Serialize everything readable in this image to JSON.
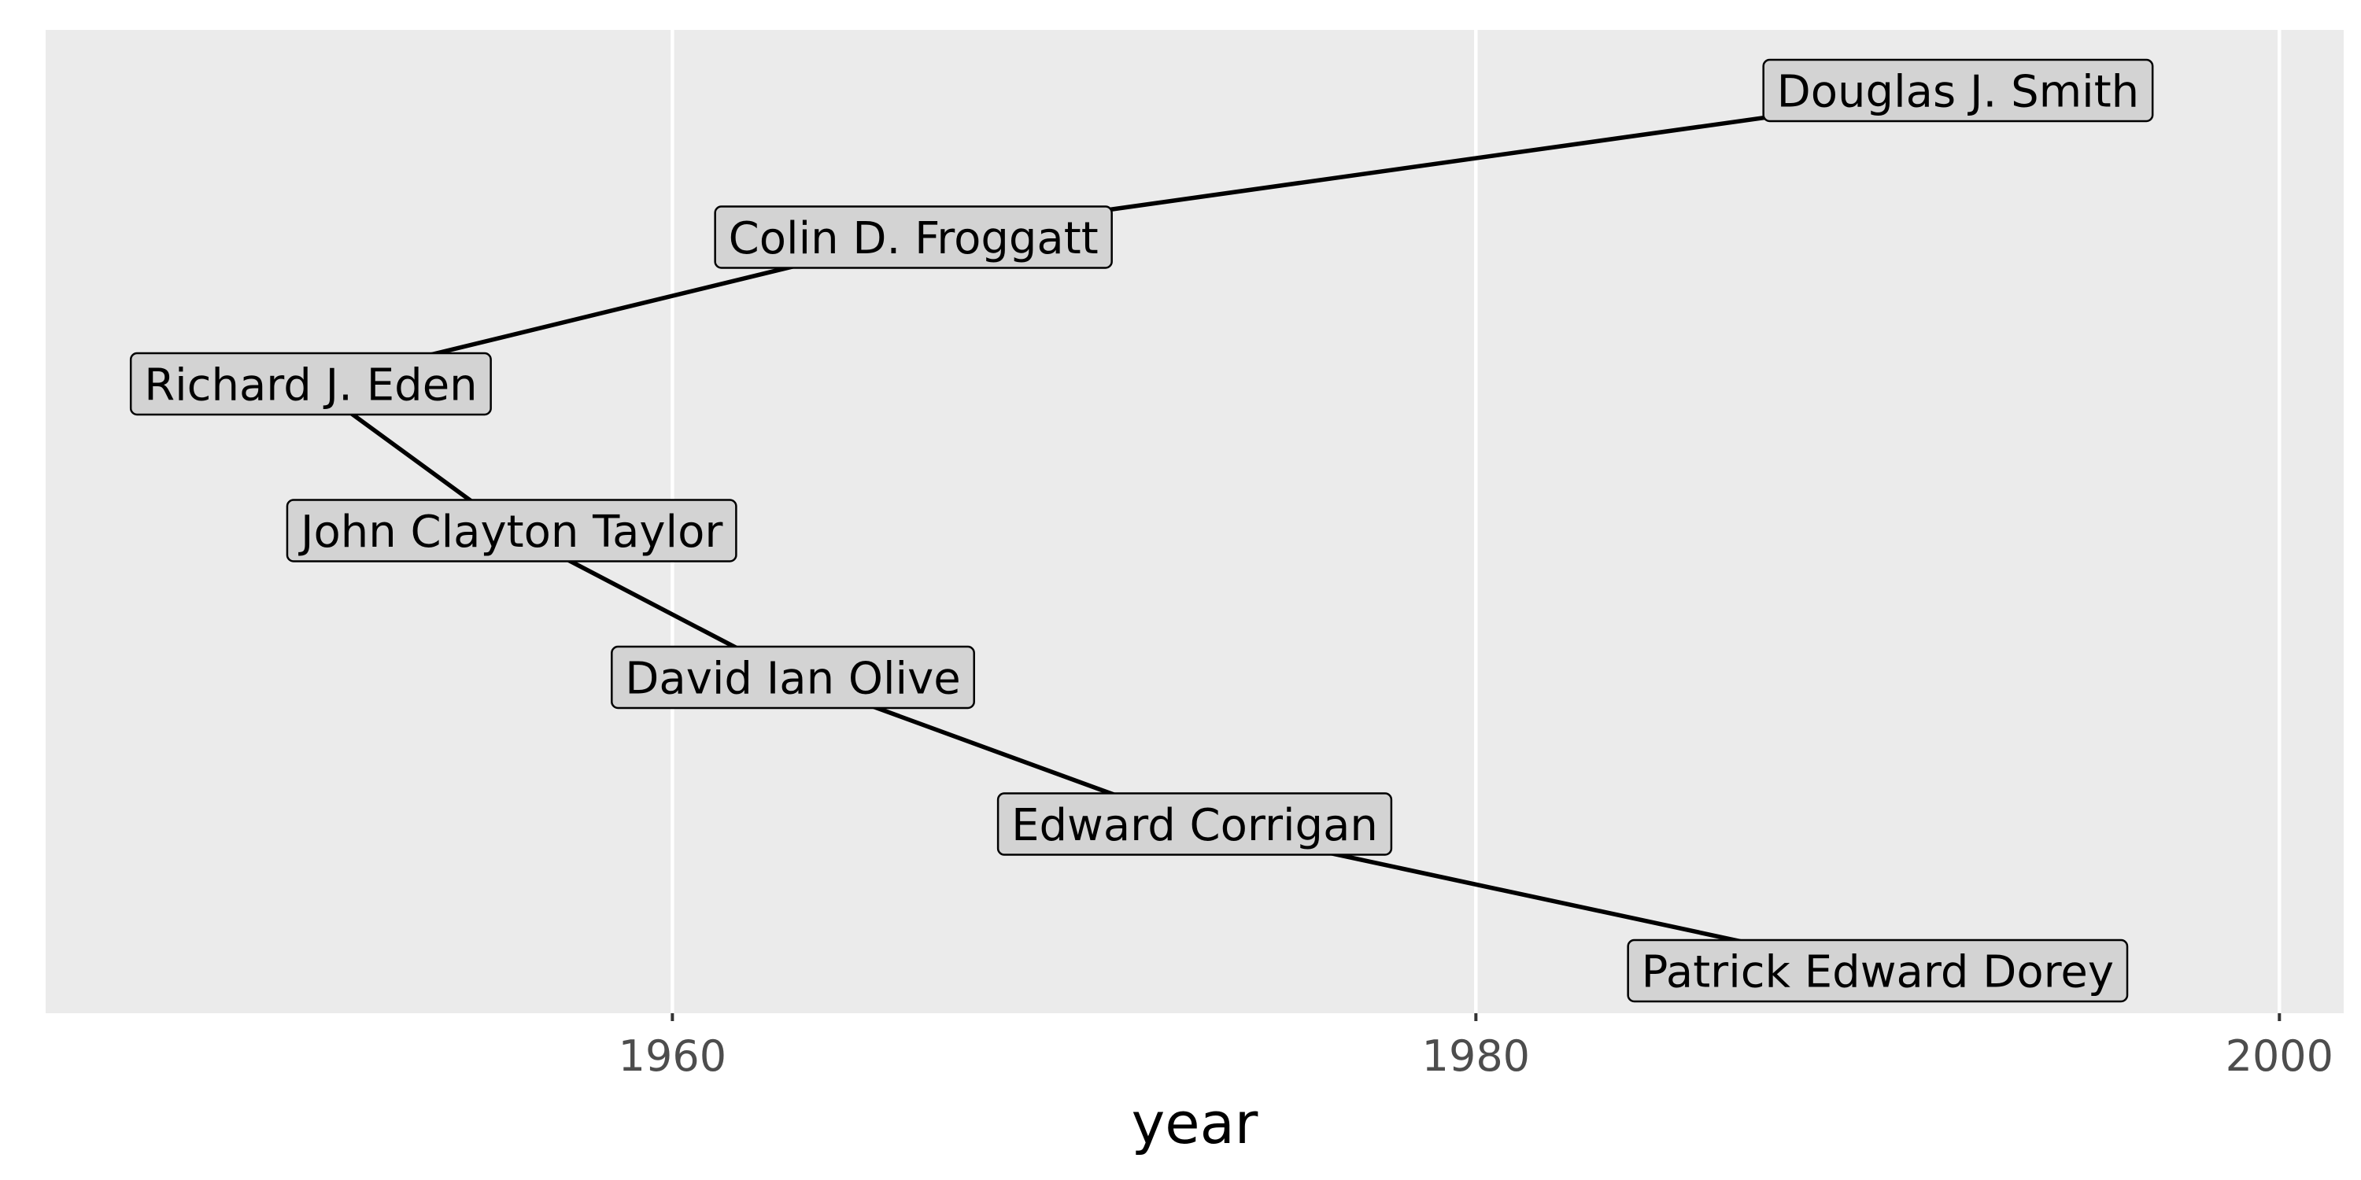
{
  "chart_data": {
    "type": "line",
    "title": "",
    "xlabel": "year",
    "ylabel": "",
    "xlim": [
      1944.4,
      2001.6
    ],
    "x_ticks": [
      1960,
      1980,
      2000
    ],
    "x_tick_labels": [
      "1960",
      "1980",
      "2000"
    ],
    "grid": true,
    "legend": "none",
    "colors": {
      "panel": "#ebebeb",
      "grid": "#ffffff",
      "line": "#000000",
      "label_fill": "#d3d3d3",
      "tick_text": "#4d4d4d"
    },
    "points": [
      {
        "label": "Douglas J. Smith",
        "year": 1992
      },
      {
        "label": "Colin D. Froggatt",
        "year": 1966
      },
      {
        "label": "Richard J. Eden",
        "year": 1951
      },
      {
        "label": "John Clayton Taylor",
        "year": 1956
      },
      {
        "label": "David Ian Olive",
        "year": 1963
      },
      {
        "label": "Edward Corrigan",
        "year": 1973
      },
      {
        "label": "Patrick Edward Dorey",
        "year": 1990
      }
    ]
  }
}
